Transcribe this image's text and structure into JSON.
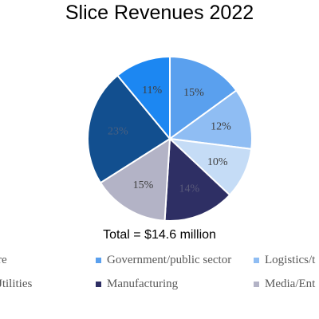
{
  "chart_data": {
    "type": "pie",
    "title": "Slice Revenues 2022",
    "annotation": "Total = $14.6 million",
    "slices": [
      {
        "label": "Government/public sector",
        "value": 15,
        "value_label": "15%",
        "color": "#5aa0ee",
        "label_color": "#404040"
      },
      {
        "label": "Logistics/t",
        "value": 12,
        "value_label": "12%",
        "color": "#8fbdf3",
        "label_color": "#404040"
      },
      {
        "label": "",
        "value": 10,
        "value_label": "10%",
        "color": "#c5dcf6",
        "label_color": "#404040"
      },
      {
        "label": "Manufacturing",
        "value": 14,
        "value_label": "14%",
        "color": "#2e2f64",
        "label_color": "#5a5a7a"
      },
      {
        "label": "Media/Ent",
        "value": 15,
        "value_label": "15%",
        "color": "#b3b3c6",
        "label_color": "#404040"
      },
      {
        "label": "",
        "value": 23,
        "value_label": "23%",
        "color": "#124f8f",
        "label_color": "#4a6080"
      },
      {
        "label": "",
        "value": 11,
        "value_label": "11%",
        "color": "#1c87f2",
        "label_color": "#404040"
      }
    ],
    "legend": [
      {
        "text": "re",
        "color": ""
      },
      {
        "text": "Government/public sector",
        "color": "#5aa0ee"
      },
      {
        "text": "Logistics/t",
        "color": "#8fbdf3"
      },
      {
        "text": "Jtilities",
        "color": ""
      },
      {
        "text": "Manufacturing",
        "color": "#2e2f64"
      },
      {
        "text": "Media/Ent",
        "color": "#b3b3c6"
      }
    ],
    "legend_placement": "bottom"
  }
}
